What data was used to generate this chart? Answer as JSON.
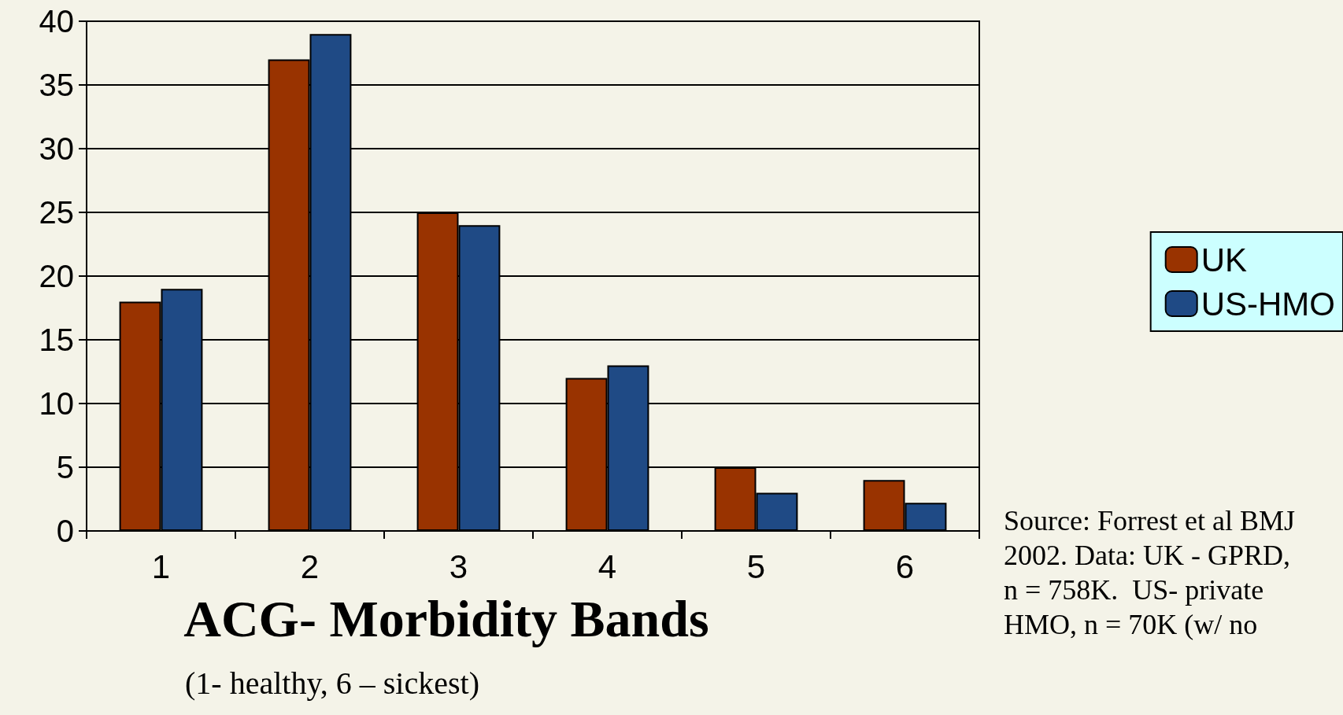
{
  "chart_data": {
    "type": "bar",
    "xlabel": "ACG- Morbidity Bands",
    "subtitle": "(1- healthy, 6 – sickest)",
    "categories": [
      "1",
      "2",
      "3",
      "4",
      "5",
      "6"
    ],
    "series": [
      {
        "name": "UK",
        "color": "#993300",
        "values": [
          18,
          37,
          25,
          12,
          5,
          4
        ]
      },
      {
        "name": "US-HMO",
        "color": "#1f4a85",
        "values": [
          19,
          39,
          24,
          13,
          3,
          2.2
        ]
      }
    ],
    "ylim": [
      0,
      40
    ],
    "yticks": [
      0,
      5,
      10,
      15,
      20,
      25,
      30,
      35,
      40
    ],
    "grid": "y",
    "legend": "right",
    "annotations": [
      "Source: Forrest et al BMJ 2002. Data: UK - GPRD,  n = 758K.  US- private HMO, n = 70K (w/ no"
    ]
  }
}
